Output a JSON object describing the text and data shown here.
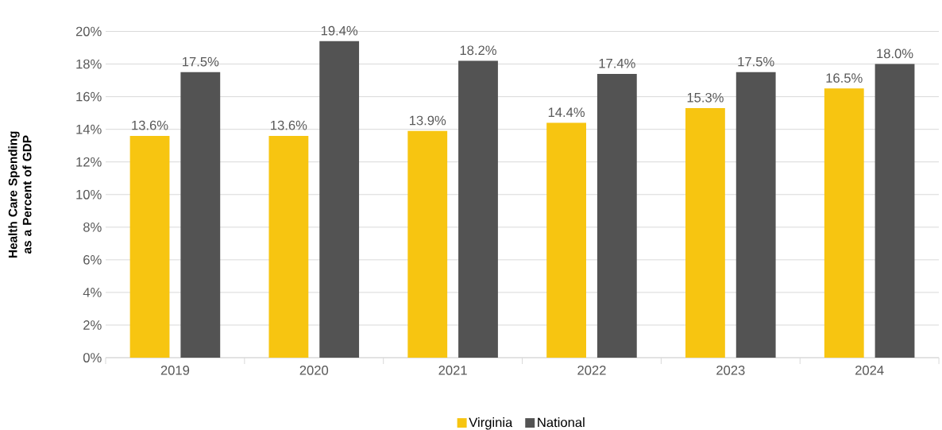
{
  "chart_data": {
    "type": "bar",
    "ylabel": "Health Care Spending as a Percent of GDP",
    "categories": [
      "2019",
      "2020",
      "2021",
      "2022",
      "2023",
      "2024"
    ],
    "series": [
      {
        "name": "Virginia",
        "color": "#f7c511",
        "values": [
          13.6,
          13.6,
          13.9,
          14.4,
          15.3,
          16.5
        ],
        "value_labels": [
          "13.6%",
          "13.6%",
          "13.9%",
          "14.4%",
          "15.3%",
          "16.5%"
        ]
      },
      {
        "name": "National",
        "color": "#535353",
        "values": [
          17.5,
          19.4,
          18.2,
          17.4,
          17.5,
          18.0
        ],
        "value_labels": [
          "17.5%",
          "19.4%",
          "18.2%",
          "17.4%",
          "17.5%",
          "18.0%"
        ]
      }
    ],
    "ylim": [
      0,
      20
    ],
    "yticks": [
      {
        "value": 0,
        "label": "0%"
      },
      {
        "value": 2,
        "label": "2%"
      },
      {
        "value": 4,
        "label": "4%"
      },
      {
        "value": 6,
        "label": "6%"
      },
      {
        "value": 8,
        "label": "8%"
      },
      {
        "value": 10,
        "label": "10%"
      },
      {
        "value": 12,
        "label": "12%"
      },
      {
        "value": 14,
        "label": "14%"
      },
      {
        "value": 16,
        "label": "16%"
      },
      {
        "value": 18,
        "label": "18%"
      },
      {
        "value": 20,
        "label": "20%"
      }
    ],
    "grid": "y",
    "legend": "bottom"
  }
}
